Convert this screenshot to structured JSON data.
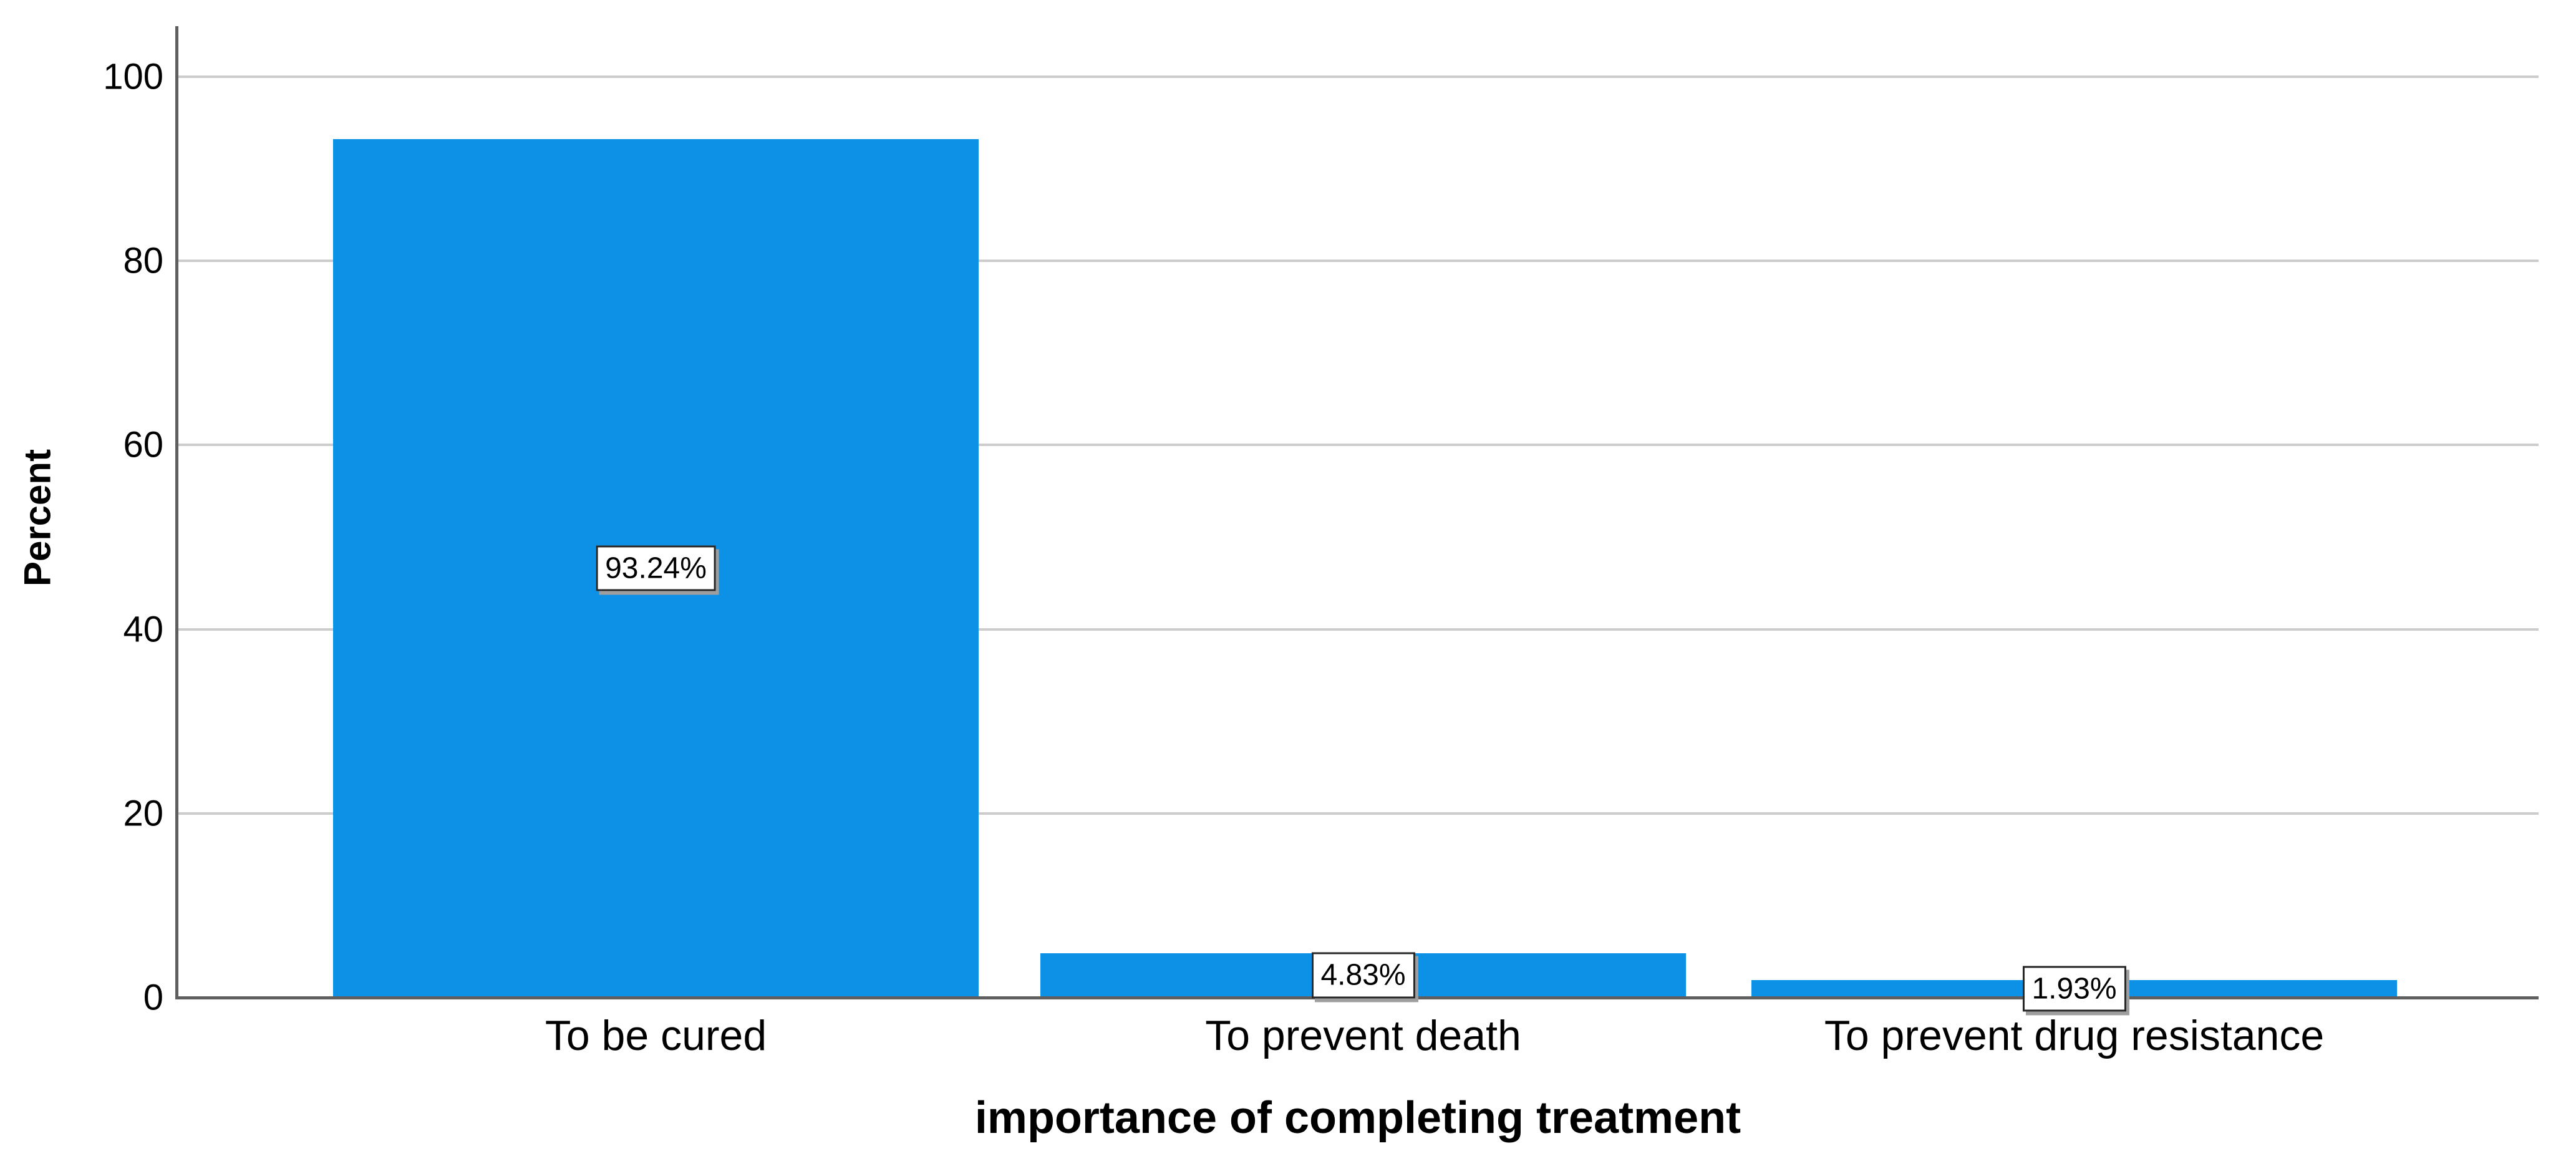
{
  "chart_data": {
    "type": "bar",
    "title": "",
    "categories": [
      "To be cured",
      "To prevent death",
      "To prevent drug resistance"
    ],
    "values": [
      93.24,
      4.83,
      1.93
    ],
    "data_labels": [
      "93.24%",
      "4.83%",
      "1.93%"
    ],
    "xlabel": "importance of completing treatment",
    "ylabel": "Percent",
    "yticks": [
      0,
      20,
      40,
      60,
      80,
      100
    ],
    "ylim": [
      0,
      105
    ],
    "grid": "horizontal",
    "legend_position": "none",
    "bar_color": "#0d91e6",
    "gridline_color": "#cccccc",
    "axis_line_color": "#5f5f5f",
    "text_color": "#000000",
    "data_label_box": {
      "background": "#ffffff",
      "border_color": "#262626",
      "shadow_color": "#9e9e9e"
    }
  }
}
